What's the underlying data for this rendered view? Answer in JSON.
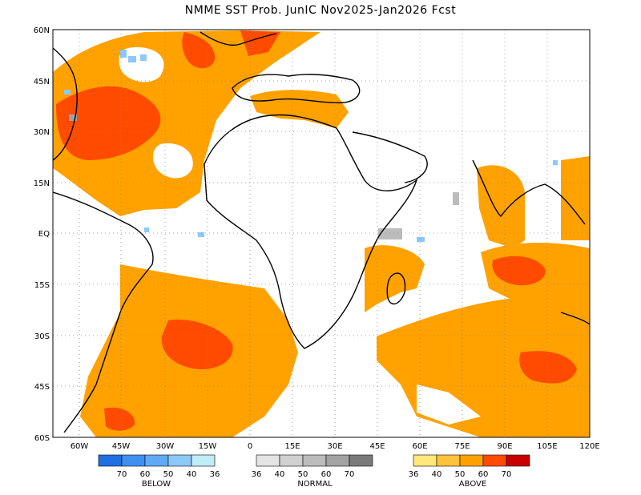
{
  "title": "NMME SST Prob. JunIC   Nov2025-Jan2026 Fcst",
  "map": {
    "lat_labels": [
      "60N",
      "45N",
      "30N",
      "15N",
      "EQ",
      "15S",
      "30S",
      "45S",
      "60S"
    ],
    "lon_labels": [
      "60W",
      "45W",
      "30W",
      "15W",
      "0",
      "15E",
      "30E",
      "45E",
      "60E",
      "75E",
      "90E",
      "105E",
      "120E"
    ],
    "extent": {
      "lon_min": -72,
      "lon_max": 120,
      "lat_min": -60,
      "lat_max": 60
    },
    "grid": true
  },
  "legend": {
    "below": {
      "label": "BELOW",
      "ticks": [
        "70",
        "60",
        "50",
        "40",
        "36"
      ],
      "colors": [
        "#1f6fe0",
        "#3e8ff0",
        "#5fa9f5",
        "#8cc8f8",
        "#c0ecf8"
      ]
    },
    "normal": {
      "label": "NORMAL",
      "ticks": [
        "36",
        "40",
        "50",
        "60",
        "70"
      ],
      "colors": [
        "#e4e4e4",
        "#d0d0d0",
        "#bcbcbc",
        "#a3a3a3",
        "#7a7a7a"
      ]
    },
    "above": {
      "label": "ABOVE",
      "ticks": [
        "36",
        "40",
        "50",
        "60",
        "70"
      ],
      "colors": [
        "#ffe879",
        "#ffc23b",
        "#ffa200",
        "#ff4b00",
        "#c90000"
      ]
    }
  }
}
